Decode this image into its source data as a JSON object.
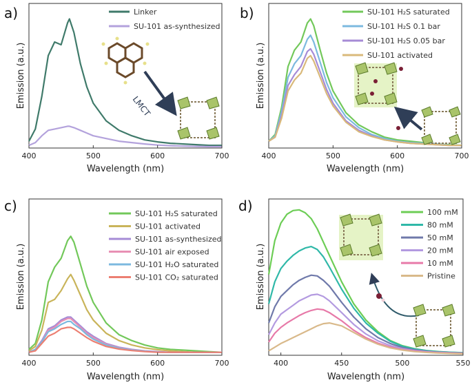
{
  "chart_data": [
    {
      "panel": "a)",
      "type": "line",
      "xlabel": "Wavelength (nm)",
      "ylabel": "Emission (a.u.)",
      "xlim": [
        400,
        700
      ],
      "ylim": [
        0,
        1
      ],
      "xticks": [
        400,
        500,
        600,
        700
      ],
      "yticks_visible": false,
      "legend_position": "top-right",
      "annotation": "LMCT",
      "x": [
        400,
        410,
        420,
        430,
        440,
        450,
        460,
        463,
        470,
        480,
        490,
        500,
        520,
        540,
        560,
        580,
        600,
        620,
        640,
        660,
        680,
        700
      ],
      "series": [
        {
          "name": "Linker",
          "color": "#3f7a6a",
          "values": [
            0.05,
            0.14,
            0.38,
            0.68,
            0.78,
            0.76,
            0.92,
            0.95,
            0.85,
            0.62,
            0.45,
            0.33,
            0.2,
            0.13,
            0.09,
            0.06,
            0.045,
            0.035,
            0.03,
            0.025,
            0.02,
            0.02
          ]
        },
        {
          "name": "SU-101 as-synthesized",
          "color": "#b3a2dc",
          "values": [
            0.02,
            0.04,
            0.09,
            0.13,
            0.14,
            0.15,
            0.16,
            0.16,
            0.15,
            0.13,
            0.11,
            0.09,
            0.07,
            0.05,
            0.04,
            0.03,
            0.022,
            0.017,
            0.014,
            0.012,
            0.01,
            0.01
          ]
        }
      ]
    },
    {
      "panel": "b)",
      "type": "line",
      "xlabel": "Wavelength (nm)",
      "ylabel": "Emission (a.u.)",
      "xlim": [
        400,
        700
      ],
      "ylim": [
        0,
        1
      ],
      "xticks": [
        400,
        500,
        600,
        700
      ],
      "yticks_visible": false,
      "legend_position": "top-right",
      "x": [
        400,
        410,
        420,
        430,
        440,
        450,
        460,
        465,
        470,
        480,
        490,
        500,
        520,
        540,
        560,
        580,
        600,
        620,
        640,
        660,
        680,
        700
      ],
      "series": [
        {
          "name": "SU-101 H₂S saturated",
          "color": "#72c85a",
          "values": [
            0.05,
            0.1,
            0.3,
            0.6,
            0.72,
            0.78,
            0.92,
            0.95,
            0.9,
            0.72,
            0.55,
            0.42,
            0.26,
            0.17,
            0.12,
            0.08,
            0.06,
            0.05,
            0.04,
            0.03,
            0.025,
            0.02
          ]
        },
        {
          "name": "SU-101 H₂S 0.1 bar",
          "color": "#7cb9df",
          "values": [
            0.05,
            0.09,
            0.27,
            0.52,
            0.62,
            0.68,
            0.8,
            0.83,
            0.78,
            0.63,
            0.48,
            0.37,
            0.23,
            0.15,
            0.1,
            0.07,
            0.05,
            0.04,
            0.035,
            0.03,
            0.022,
            0.02
          ]
        },
        {
          "name": "SU-101 H₂S 0.05 bar",
          "color": "#a68bd6",
          "values": [
            0.05,
            0.08,
            0.24,
            0.46,
            0.54,
            0.6,
            0.71,
            0.73,
            0.69,
            0.56,
            0.43,
            0.33,
            0.2,
            0.13,
            0.09,
            0.06,
            0.045,
            0.035,
            0.03,
            0.025,
            0.02,
            0.02
          ]
        },
        {
          "name": "SU-101 activated",
          "color": "#d9b97a",
          "values": [
            0.05,
            0.08,
            0.22,
            0.42,
            0.5,
            0.55,
            0.66,
            0.68,
            0.64,
            0.52,
            0.4,
            0.31,
            0.19,
            0.12,
            0.085,
            0.06,
            0.045,
            0.035,
            0.03,
            0.025,
            0.02,
            0.02
          ]
        }
      ]
    },
    {
      "panel": "c)",
      "type": "line",
      "xlabel": "Wavelength (nm)",
      "ylabel": "Emission (a.u.)",
      "xlim": [
        400,
        700
      ],
      "ylim": [
        0,
        1
      ],
      "xticks": [
        400,
        500,
        600,
        700
      ],
      "yticks_visible": false,
      "legend_position": "top-right",
      "x": [
        400,
        410,
        420,
        430,
        440,
        450,
        460,
        465,
        470,
        480,
        490,
        500,
        520,
        540,
        560,
        580,
        600,
        620,
        640,
        660,
        680,
        700
      ],
      "series": [
        {
          "name": "SU-101 H₂S saturated",
          "color": "#72c85a",
          "values": [
            0.04,
            0.08,
            0.24,
            0.5,
            0.6,
            0.66,
            0.78,
            0.81,
            0.77,
            0.62,
            0.47,
            0.36,
            0.22,
            0.14,
            0.1,
            0.07,
            0.05,
            0.04,
            0.035,
            0.03,
            0.025,
            0.02
          ]
        },
        {
          "name": "SU-101 activated",
          "color": "#c9b45a",
          "values": [
            0.03,
            0.06,
            0.17,
            0.36,
            0.38,
            0.44,
            0.52,
            0.55,
            0.51,
            0.41,
            0.31,
            0.24,
            0.15,
            0.1,
            0.07,
            0.05,
            0.038,
            0.03,
            0.025,
            0.02,
            0.02,
            0.02
          ]
        },
        {
          "name": "SU-101 as-synthesized",
          "color": "#a68bd6",
          "values": [
            0.02,
            0.04,
            0.1,
            0.18,
            0.2,
            0.24,
            0.26,
            0.26,
            0.24,
            0.2,
            0.16,
            0.13,
            0.08,
            0.055,
            0.04,
            0.03,
            0.025,
            0.02,
            0.02,
            0.02,
            0.02,
            0.02
          ]
        },
        {
          "name": "SU-101 air exposed",
          "color": "#e890b4",
          "values": [
            0.02,
            0.04,
            0.09,
            0.17,
            0.19,
            0.23,
            0.25,
            0.25,
            0.23,
            0.19,
            0.15,
            0.12,
            0.075,
            0.05,
            0.037,
            0.028,
            0.022,
            0.02,
            0.02,
            0.02,
            0.02,
            0.02
          ]
        },
        {
          "name": "SU-101 H₂O saturated",
          "color": "#7cb9df",
          "values": [
            0.02,
            0.04,
            0.09,
            0.16,
            0.18,
            0.21,
            0.23,
            0.23,
            0.21,
            0.18,
            0.14,
            0.11,
            0.07,
            0.048,
            0.035,
            0.027,
            0.021,
            0.02,
            0.02,
            0.02,
            0.02,
            0.02
          ]
        },
        {
          "name": "SU-101 CO₂ saturated",
          "color": "#ec7f72",
          "values": [
            0.02,
            0.03,
            0.08,
            0.13,
            0.15,
            0.18,
            0.19,
            0.19,
            0.18,
            0.15,
            0.12,
            0.095,
            0.06,
            0.042,
            0.032,
            0.025,
            0.02,
            0.02,
            0.02,
            0.02,
            0.02,
            0.02
          ]
        }
      ]
    },
    {
      "panel": "d)",
      "type": "line",
      "xlabel": "Wavelength (nm)",
      "ylabel": "Emission (a.u.)",
      "xlim": [
        390,
        550
      ],
      "ylim": [
        0,
        1
      ],
      "xticks": [
        400,
        450,
        500,
        550
      ],
      "yticks_visible": false,
      "legend_position": "top-right",
      "x": [
        390,
        395,
        400,
        405,
        410,
        415,
        420,
        425,
        430,
        435,
        440,
        450,
        460,
        470,
        480,
        490,
        500,
        510,
        520,
        530,
        540,
        550
      ],
      "series": [
        {
          "name": "100 mM",
          "color": "#6ccd55",
          "values": [
            0.55,
            0.78,
            0.9,
            0.96,
            0.985,
            0.99,
            0.97,
            0.93,
            0.86,
            0.77,
            0.68,
            0.5,
            0.35,
            0.24,
            0.16,
            0.1,
            0.065,
            0.045,
            0.032,
            0.025,
            0.02,
            0.018
          ]
        },
        {
          "name": "80 mM",
          "color": "#2fb8a8",
          "values": [
            0.35,
            0.5,
            0.59,
            0.64,
            0.68,
            0.71,
            0.73,
            0.74,
            0.72,
            0.67,
            0.6,
            0.45,
            0.32,
            0.22,
            0.15,
            0.095,
            0.062,
            0.043,
            0.031,
            0.024,
            0.02,
            0.017
          ]
        },
        {
          "name": "50 mM",
          "color": "#6f79aa",
          "values": [
            0.22,
            0.33,
            0.4,
            0.44,
            0.48,
            0.51,
            0.53,
            0.545,
            0.54,
            0.51,
            0.47,
            0.36,
            0.26,
            0.18,
            0.12,
            0.08,
            0.053,
            0.037,
            0.027,
            0.021,
            0.018,
            0.015
          ]
        },
        {
          "name": "20 mM",
          "color": "#b39ae0",
          "values": [
            0.14,
            0.22,
            0.28,
            0.31,
            0.34,
            0.37,
            0.39,
            0.41,
            0.415,
            0.4,
            0.37,
            0.29,
            0.21,
            0.145,
            0.098,
            0.066,
            0.045,
            0.032,
            0.024,
            0.019,
            0.016,
            0.014
          ]
        },
        {
          "name": "10 mM",
          "color": "#e779a8",
          "values": [
            0.09,
            0.15,
            0.19,
            0.22,
            0.245,
            0.27,
            0.29,
            0.305,
            0.315,
            0.31,
            0.29,
            0.235,
            0.17,
            0.12,
            0.082,
            0.056,
            0.039,
            0.028,
            0.021,
            0.017,
            0.014,
            0.012
          ]
        },
        {
          "name": "Pristine",
          "color": "#d9b98a",
          "values": [
            0.03,
            0.055,
            0.08,
            0.1,
            0.12,
            0.14,
            0.16,
            0.18,
            0.2,
            0.215,
            0.22,
            0.2,
            0.155,
            0.11,
            0.075,
            0.05,
            0.035,
            0.025,
            0.019,
            0.015,
            0.012,
            0.01
          ]
        }
      ]
    }
  ]
}
